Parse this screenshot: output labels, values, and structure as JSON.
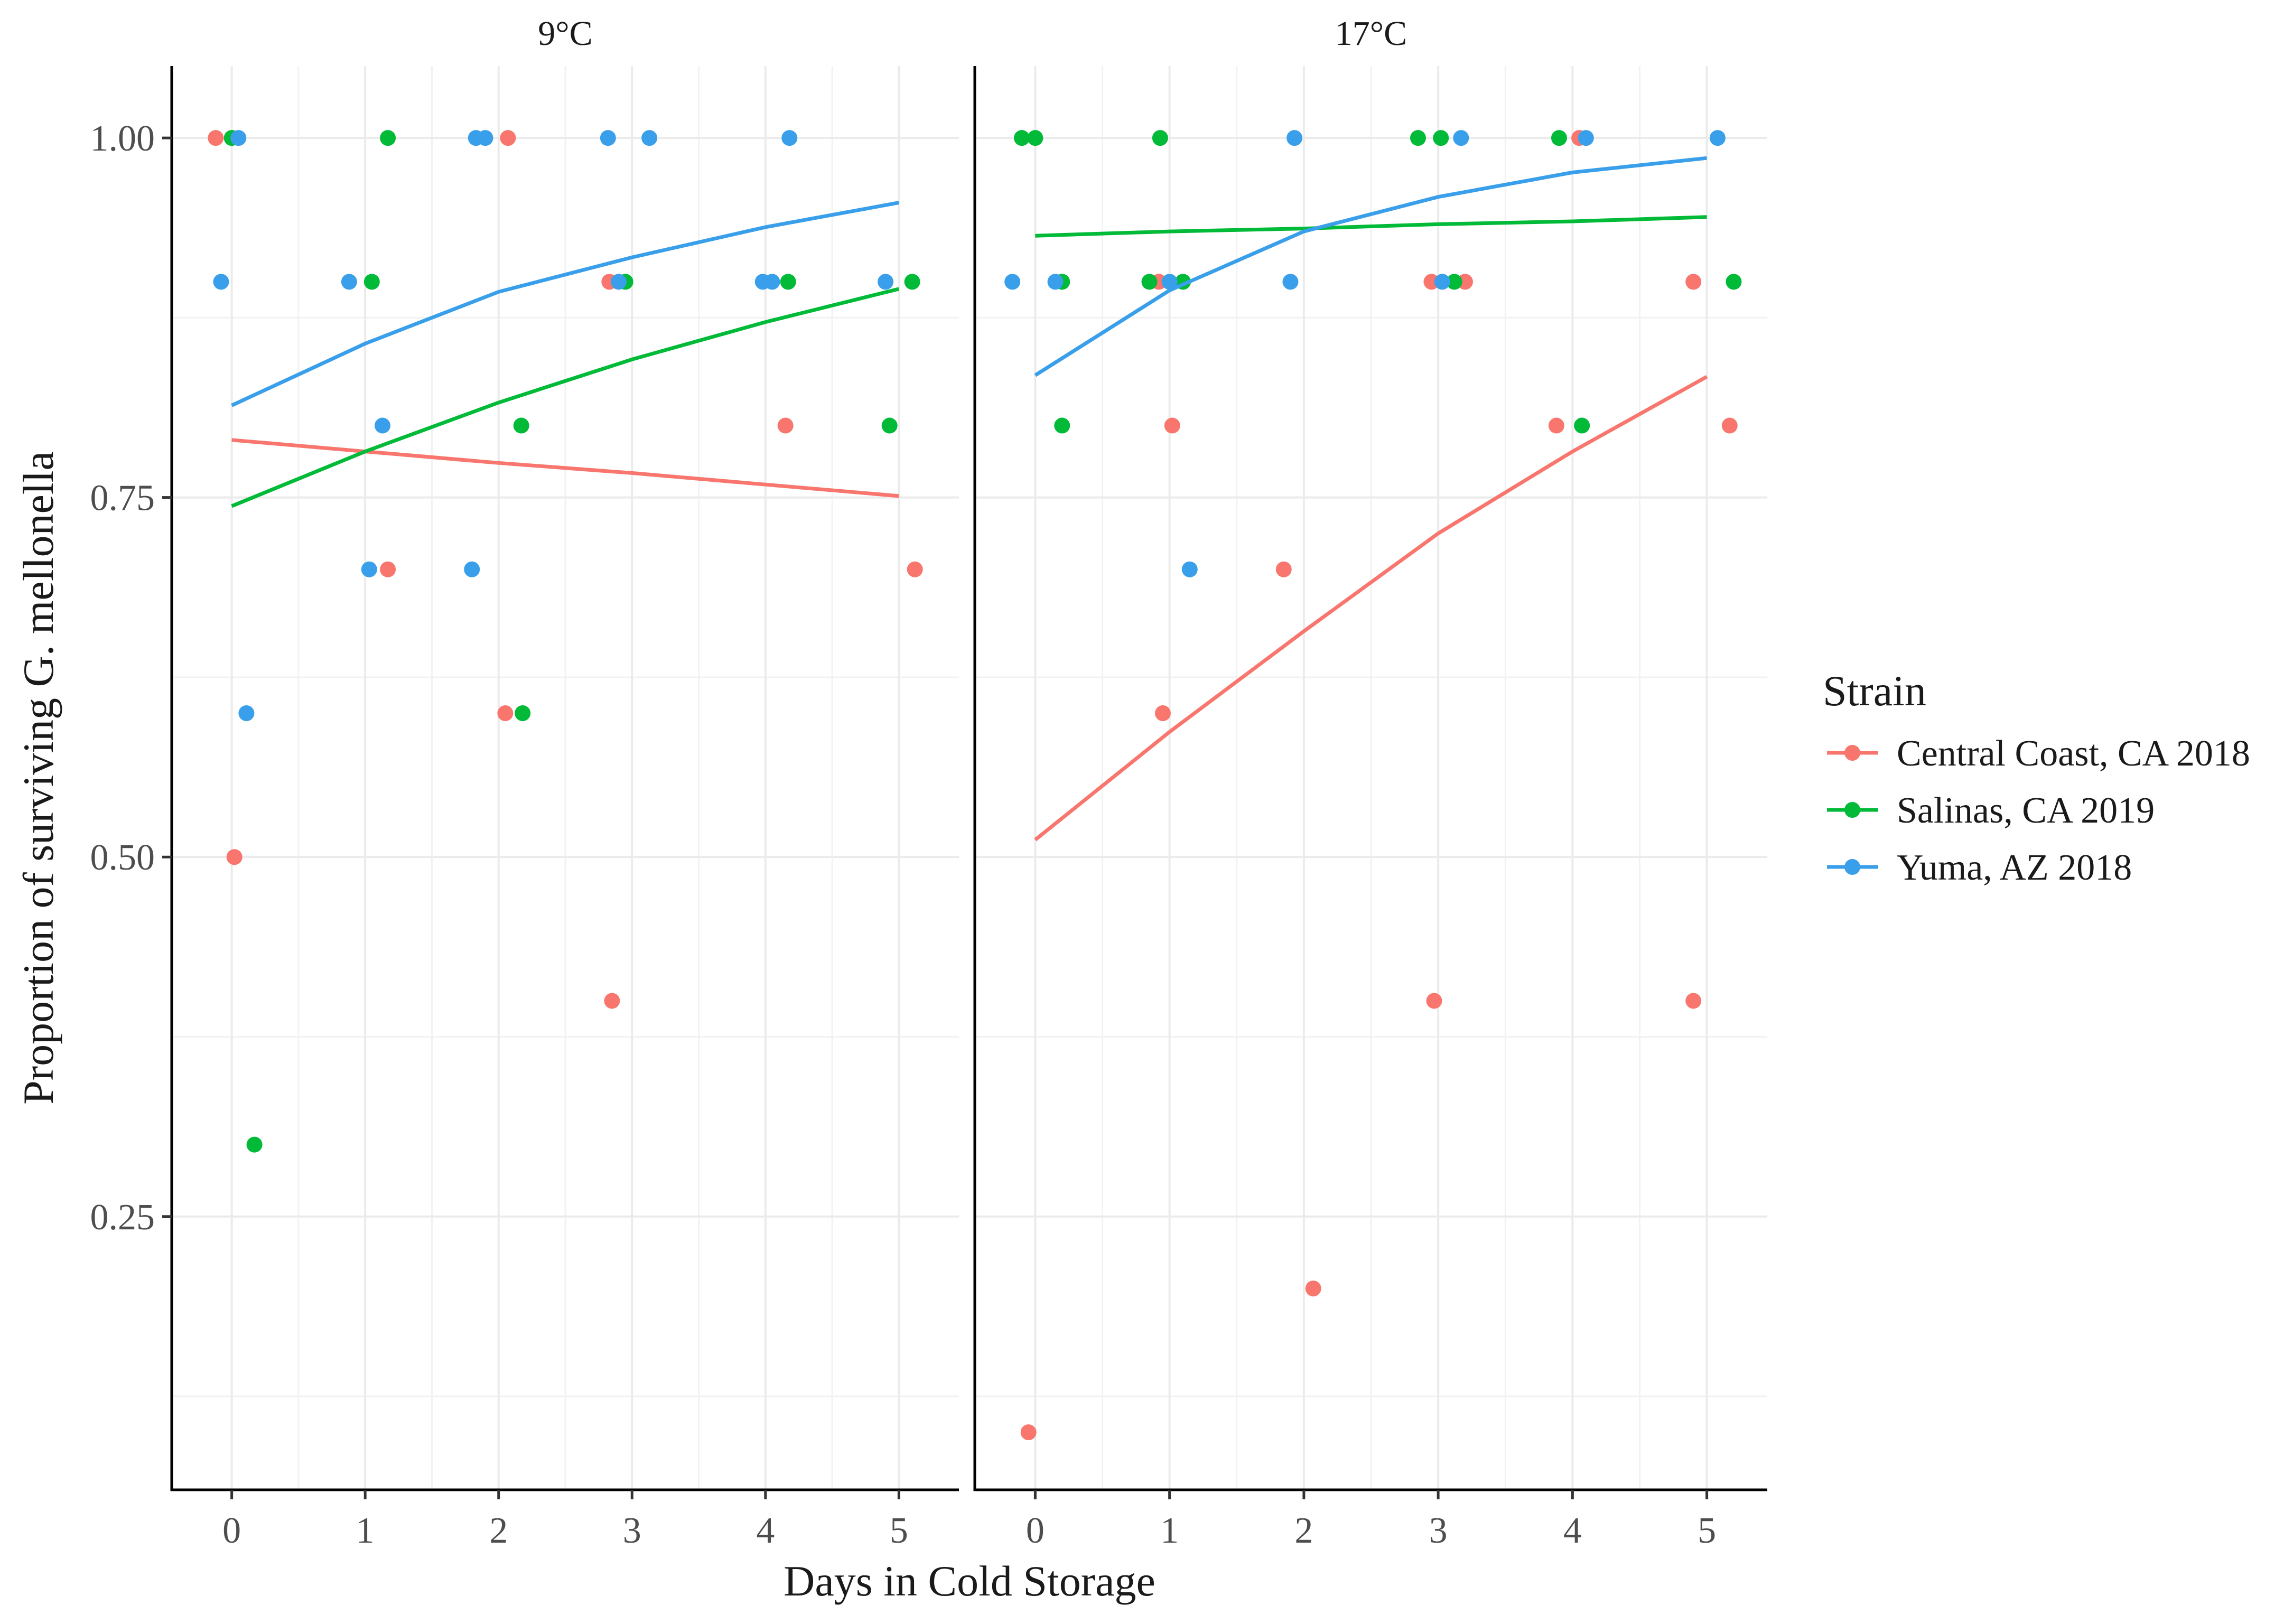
{
  "chart_data": {
    "type": "scatter",
    "xlabel": "Days in Cold Storage",
    "ylabel": "Proportion of surviving G. mellonella",
    "xlim": [
      -0.45,
      5.45
    ],
    "ylim": [
      0.06,
      1.05
    ],
    "x_ticks": [
      0,
      1,
      2,
      3,
      4,
      5
    ],
    "y_ticks": [
      0.25,
      0.5,
      0.75,
      1.0
    ],
    "y_tick_labels": [
      "0.25",
      "0.50",
      "0.75",
      "1.00"
    ],
    "grid": true,
    "legend": {
      "title": "Strain",
      "position": "right",
      "entries": [
        "Central Coast, CA 2018",
        "Salinas, CA 2019",
        "Yuma, AZ 2018"
      ]
    },
    "panels": [
      {
        "title": "9°C",
        "series": [
          {
            "name": "Central Coast, CA 2018",
            "color": "#F8766D",
            "points": [
              [
                -0.12,
                1.0
              ],
              [
                0.02,
                0.5
              ],
              [
                1.17,
                0.7
              ],
              [
                2.05,
                0.6
              ],
              [
                2.07,
                1.0
              ],
              [
                2.83,
                0.9
              ],
              [
                2.85,
                0.4
              ],
              [
                4.15,
                0.8
              ],
              [
                5.12,
                0.7
              ]
            ],
            "trend": [
              [
                0,
                0.79
              ],
              [
                1,
                0.782
              ],
              [
                2,
                0.774
              ],
              [
                3,
                0.767
              ],
              [
                4,
                0.759
              ],
              [
                5,
                0.751
              ]
            ]
          },
          {
            "name": "Salinas, CA 2019",
            "color": "#00BA38",
            "points": [
              [
                0.0,
                1.0
              ],
              [
                0.17,
                0.3
              ],
              [
                1.05,
                0.9
              ],
              [
                1.17,
                1.0
              ],
              [
                2.17,
                0.8
              ],
              [
                2.18,
                0.6
              ],
              [
                2.95,
                0.9
              ],
              [
                4.17,
                0.9
              ],
              [
                4.93,
                0.8
              ],
              [
                5.1,
                0.9
              ]
            ],
            "trend": [
              [
                0,
                0.744
              ],
              [
                1,
                0.782
              ],
              [
                2,
                0.816
              ],
              [
                3,
                0.846
              ],
              [
                4,
                0.872
              ],
              [
                5,
                0.895
              ]
            ]
          },
          {
            "name": "Yuma, AZ 2018",
            "color": "#3A9FEA",
            "points": [
              [
                -0.08,
                0.9
              ],
              [
                0.05,
                1.0
              ],
              [
                0.11,
                0.6
              ],
              [
                0.88,
                0.9
              ],
              [
                1.03,
                0.7
              ],
              [
                1.13,
                0.8
              ],
              [
                1.8,
                0.7
              ],
              [
                1.83,
                1.0
              ],
              [
                1.9,
                1.0
              ],
              [
                2.82,
                1.0
              ],
              [
                2.9,
                0.9
              ],
              [
                3.13,
                1.0
              ],
              [
                3.98,
                0.9
              ],
              [
                4.05,
                0.9
              ],
              [
                4.18,
                1.0
              ],
              [
                4.9,
                0.9
              ]
            ],
            "trend": [
              [
                0,
                0.814
              ],
              [
                1,
                0.857
              ],
              [
                2,
                0.893
              ],
              [
                3,
                0.917
              ],
              [
                4,
                0.938
              ],
              [
                5,
                0.955
              ]
            ]
          }
        ]
      },
      {
        "title": "17°C",
        "series": [
          {
            "name": "Central Coast, CA 2018",
            "color": "#F8766D",
            "points": [
              [
                -0.05,
                0.1
              ],
              [
                0.92,
                0.9
              ],
              [
                0.95,
                0.6
              ],
              [
                1.02,
                0.8
              ],
              [
                1.85,
                0.7
              ],
              [
                2.07,
                0.2
              ],
              [
                2.95,
                0.9
              ],
              [
                2.97,
                0.4
              ],
              [
                3.2,
                0.9
              ],
              [
                3.88,
                0.8
              ],
              [
                4.05,
                1.0
              ],
              [
                4.9,
                0.9
              ],
              [
                4.9,
                0.4
              ],
              [
                5.17,
                0.8
              ]
            ],
            "trend": [
              [
                0,
                0.512
              ],
              [
                1,
                0.587
              ],
              [
                2,
                0.657
              ],
              [
                3,
                0.725
              ],
              [
                4,
                0.782
              ],
              [
                5,
                0.834
              ]
            ]
          },
          {
            "name": "Salinas, CA 2019",
            "color": "#00BA38",
            "points": [
              [
                -0.1,
                1.0
              ],
              [
                0.0,
                1.0
              ],
              [
                0.2,
                0.9
              ],
              [
                0.2,
                0.8
              ],
              [
                0.85,
                0.9
              ],
              [
                0.93,
                1.0
              ],
              [
                1.1,
                0.9
              ],
              [
                2.85,
                1.0
              ],
              [
                3.02,
                1.0
              ],
              [
                3.12,
                0.9
              ],
              [
                3.9,
                1.0
              ],
              [
                4.07,
                0.8
              ],
              [
                5.2,
                0.9
              ]
            ],
            "trend": [
              [
                0,
                0.932
              ],
              [
                1,
                0.935
              ],
              [
                2,
                0.937
              ],
              [
                3,
                0.94
              ],
              [
                4,
                0.942
              ],
              [
                5,
                0.945
              ]
            ]
          },
          {
            "name": "Yuma, AZ 2018",
            "color": "#3A9FEA",
            "points": [
              [
                -0.17,
                0.9
              ],
              [
                0.15,
                0.9
              ],
              [
                1.0,
                0.9
              ],
              [
                1.15,
                0.7
              ],
              [
                1.9,
                0.9
              ],
              [
                1.93,
                1.0
              ],
              [
                3.03,
                0.9
              ],
              [
                3.17,
                1.0
              ],
              [
                4.1,
                1.0
              ],
              [
                5.08,
                1.0
              ]
            ],
            "trend": [
              [
                0,
                0.835
              ],
              [
                1,
                0.894
              ],
              [
                2,
                0.935
              ],
              [
                3,
                0.959
              ],
              [
                4,
                0.976
              ],
              [
                5,
                0.986
              ]
            ]
          }
        ]
      }
    ]
  }
}
